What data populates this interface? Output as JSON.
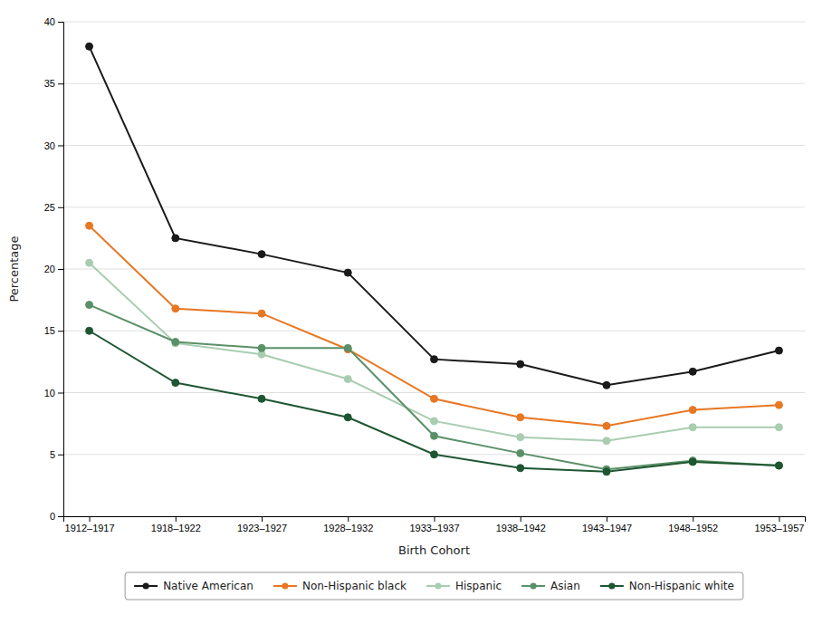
{
  "chart_data": {
    "type": "line",
    "categories": [
      "1912–1917",
      "1918–1922",
      "1923–1927",
      "1928–1932",
      "1933–1937",
      "1938–1942",
      "1943–1947",
      "1948–1952",
      "1953–1957"
    ],
    "series": [
      {
        "name": "Native American",
        "values": [
          38.0,
          22.5,
          21.2,
          19.7,
          12.7,
          12.3,
          10.6,
          11.7,
          13.4
        ],
        "color": "#1a1a1a",
        "marker": "circle"
      },
      {
        "name": "Non-Hispanic black",
        "values": [
          23.5,
          16.8,
          16.4,
          13.5,
          9.5,
          8.0,
          7.3,
          8.6,
          9.0
        ],
        "color": "#e87722",
        "marker": "circle"
      },
      {
        "name": "Hispanic",
        "values": [
          20.5,
          14.0,
          13.1,
          11.1,
          7.7,
          6.4,
          6.1,
          7.2,
          7.2
        ],
        "color": "#a8cdb0",
        "marker": "circle"
      },
      {
        "name": "Asian",
        "values": [
          17.1,
          14.1,
          13.6,
          13.6,
          6.5,
          5.1,
          3.8,
          4.5,
          4.1
        ],
        "color": "#5a9068",
        "marker": "circle"
      },
      {
        "name": "Non-Hispanic white",
        "values": [
          15.0,
          10.8,
          9.5,
          8.0,
          5.0,
          3.9,
          3.6,
          4.4,
          4.1
        ],
        "color": "#1e5631",
        "marker": "circle"
      }
    ],
    "xlabel": "Birth Cohort",
    "ylabel": "Percentage",
    "ylim": [
      0,
      40
    ],
    "yticks": [
      0,
      5,
      10,
      15,
      20,
      25,
      30,
      35,
      40
    ],
    "grid": true,
    "legend": "bottom"
  }
}
